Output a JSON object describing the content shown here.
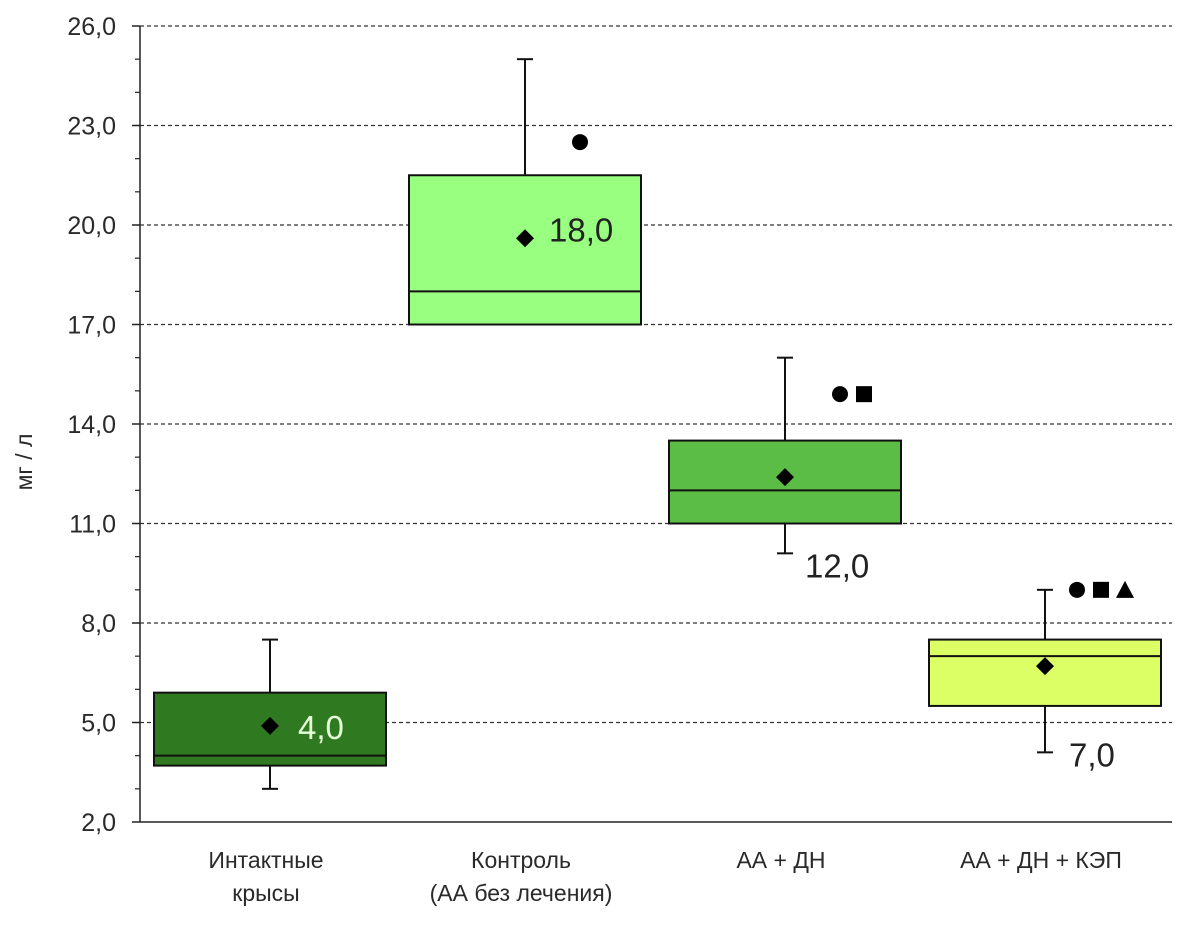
{
  "chart_data": {
    "type": "boxplot",
    "ylabel": "мг / л",
    "ylim": [
      2.0,
      26.0
    ],
    "yticks": [
      2.0,
      5.0,
      8.0,
      11.0,
      14.0,
      17.0,
      20.0,
      23.0,
      26.0
    ],
    "ytick_labels": [
      "2,0",
      "5,0",
      "8,0",
      "11,0",
      "14,0",
      "17,0",
      "20,0",
      "23,0",
      "26,0"
    ],
    "grid": "horizontal dashed",
    "categories": [
      {
        "label_lines": [
          "Интактные",
          "крысы"
        ],
        "whisker_low": 3.0,
        "q1": 3.7,
        "median": 4.0,
        "q3": 5.9,
        "whisker_high": 7.5,
        "mean": 4.9,
        "median_label": "4,0",
        "median_label_color": "#e6ffd9",
        "color": "#2f7a21",
        "markers": []
      },
      {
        "label_lines": [
          "Контроль",
          "(АА без лечения)"
        ],
        "whisker_low": 17.0,
        "q1": 17.0,
        "median": 18.0,
        "q3": 21.5,
        "whisker_high": 25.0,
        "mean": 19.6,
        "median_label": "18,0",
        "median_label_color": "#222222",
        "color": "#99ff80",
        "markers": [
          "circle"
        ]
      },
      {
        "label_lines": [
          "АА + ДН"
        ],
        "whisker_low": 10.1,
        "q1": 11.0,
        "median": 12.0,
        "q3": 13.5,
        "whisker_high": 16.0,
        "mean": 12.4,
        "median_label": "12,0",
        "median_label_color": "#222222",
        "color": "#5bbd45",
        "markers": [
          "circle",
          "square"
        ]
      },
      {
        "label_lines": [
          "АА + ДН + КЭП"
        ],
        "whisker_low": 4.1,
        "q1": 5.5,
        "median": 7.0,
        "q3": 7.5,
        "whisker_high": 9.0,
        "mean": 6.7,
        "median_label": "7,0",
        "median_label_color": "#222222",
        "color": "#dcff66",
        "markers": [
          "circle",
          "square",
          "triangle"
        ]
      }
    ]
  }
}
